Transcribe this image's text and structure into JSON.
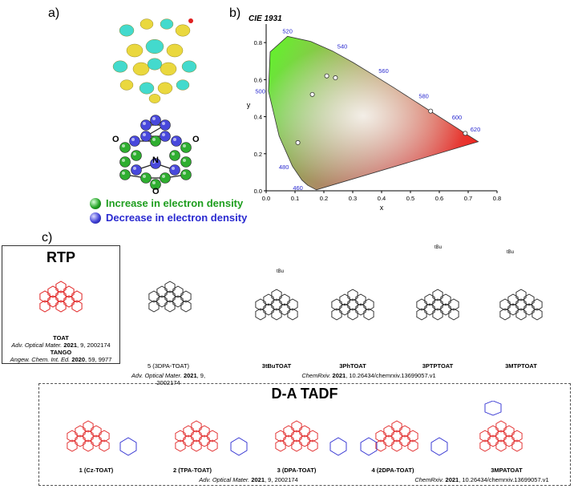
{
  "panels": {
    "a": "a)",
    "b": "b)",
    "c": "c)"
  },
  "legend": {
    "increase": "Increase in electron density",
    "decrease": "Decrease in electron density",
    "increase_color": "#1e9e1e",
    "decrease_color": "#2a2ad0"
  },
  "mol_atoms": {
    "o": "O",
    "n": "N"
  },
  "chart_data": {
    "type": "scatter",
    "title": "CIE 1931",
    "xlabel": "x",
    "ylabel": "y",
    "xlim": [
      0.0,
      0.8
    ],
    "ylim": [
      0.0,
      0.9
    ],
    "xticks": [
      "0.0",
      "0.1",
      "0.2",
      "0.3",
      "0.4",
      "0.5",
      "0.6",
      "0.7",
      "0.8"
    ],
    "yticks": [
      "0.0",
      "0.2",
      "0.4",
      "0.6",
      "0.8"
    ],
    "wavelength_labels": [
      {
        "text": "460",
        "x": 0.144,
        "y": 0.03
      },
      {
        "text": "480",
        "x": 0.09,
        "y": 0.13
      },
      {
        "text": "500",
        "x": 0.008,
        "y": 0.538
      },
      {
        "text": "520",
        "x": 0.074,
        "y": 0.834
      },
      {
        "text": "540",
        "x": 0.23,
        "y": 0.754
      },
      {
        "text": "560",
        "x": 0.373,
        "y": 0.624
      },
      {
        "text": "580",
        "x": 0.512,
        "y": 0.487
      },
      {
        "text": "600",
        "x": 0.627,
        "y": 0.373
      },
      {
        "text": "620",
        "x": 0.691,
        "y": 0.308
      }
    ],
    "points": [
      {
        "x": 0.11,
        "y": 0.26
      },
      {
        "x": 0.16,
        "y": 0.52
      },
      {
        "x": 0.21,
        "y": 0.62
      },
      {
        "x": 0.24,
        "y": 0.61
      },
      {
        "x": 0.57,
        "y": 0.43
      },
      {
        "x": 0.69,
        "y": 0.31
      }
    ],
    "grid": false
  },
  "rtp": {
    "heading": "RTP",
    "name1": "TOAT",
    "cite1_journal": "Adv. Optical Mater.",
    "cite1_year": "2021",
    "cite1_rest": ", 9, 2002174",
    "name2": "TANGO",
    "cite2_journal": "Angew. Chem. Int. Ed.",
    "cite2_year": "2020",
    "cite2_rest": ", 59, 9977"
  },
  "rtp_others": {
    "m5": "5 (3DPA-TOAT)",
    "m5_cite_journal": "Adv. Optical Mater.",
    "m5_cite_year": "2021",
    "m5_cite_rest": ", 9, 2002174",
    "m3tbu": "3tBuTOAT",
    "m3ph": "3PhTOAT",
    "m3ptp": "3PTPTOAT",
    "m3mtp": "3MTPTOAT",
    "chem_cite_journal": "ChemRxiv.",
    "chem_cite_year": "2021",
    "chem_cite_rest": ", 10.26434/chemrxiv.13699057.v1",
    "tbu": "tBu"
  },
  "tadf": {
    "heading": "D-A TADF",
    "m1": "1 (Cz-TOAT)",
    "m2": "2 (TPA-TOAT)",
    "m3": "3 (DPA-TOAT)",
    "m4": "4 (2DPA-TOAT)",
    "m5": "3MPATOAT",
    "cite_journal": "Adv. Optical Mater.",
    "cite_year": "2021",
    "cite_rest": ", 9, 2002174",
    "cite2_journal": "ChemRxiv.",
    "cite2_year": "2021",
    "cite2_rest": ", 10.26434/chemrxiv.13699057.v1",
    "acceptor_color": "#e02020",
    "donor_color": "#2a2ad0"
  }
}
